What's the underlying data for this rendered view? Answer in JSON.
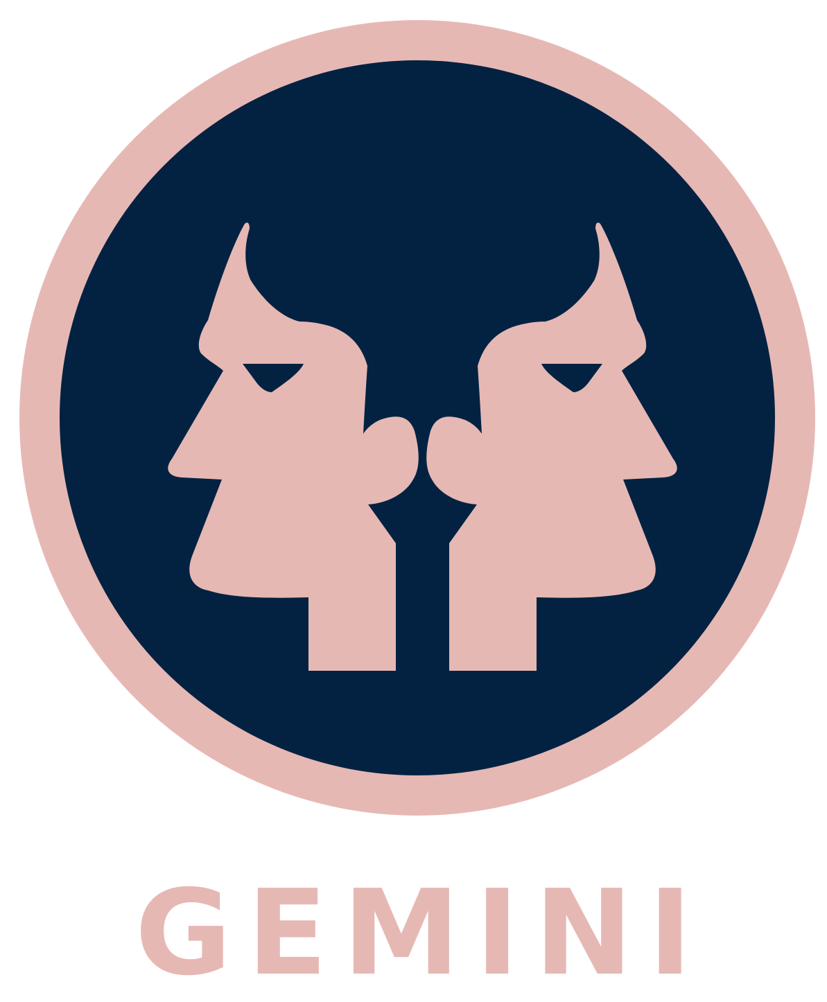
{
  "title": "GEMINI",
  "colors": {
    "ring": "#e6b8b4",
    "disc": "#032242",
    "faces": "#e6b8b4",
    "title": "#e6b8b4",
    "background": "#ffffff"
  },
  "icons": {
    "emblem": "gemini-twin-profiles-icon"
  }
}
